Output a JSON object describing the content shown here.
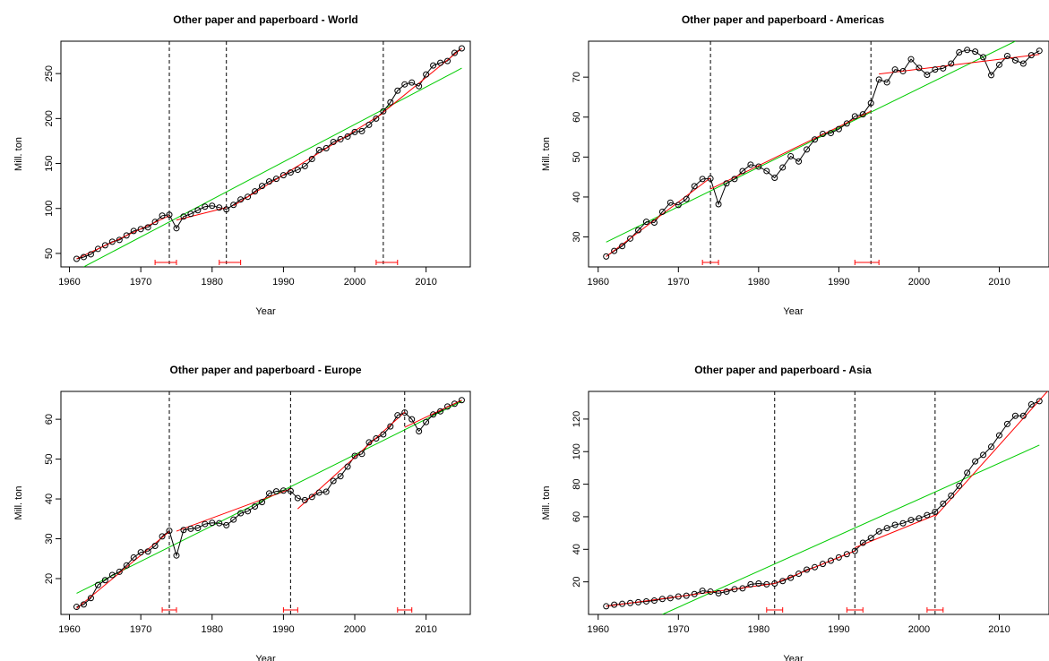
{
  "chart_data": [
    {
      "type": "line",
      "title": "Other paper and paperboard - World",
      "xlabel": "Year",
      "ylabel": "Mill. ton",
      "xlim": [
        1958.8,
        2016.2
      ],
      "ylim": [
        35,
        286
      ],
      "xticks": [
        1960,
        1970,
        1980,
        1990,
        2000,
        2010
      ],
      "yticks": [
        50,
        100,
        150,
        200,
        250
      ],
      "x": [
        1961,
        1962,
        1963,
        1964,
        1965,
        1966,
        1967,
        1968,
        1969,
        1970,
        1971,
        1972,
        1973,
        1974,
        1975,
        1976,
        1977,
        1978,
        1979,
        1980,
        1981,
        1982,
        1983,
        1984,
        1985,
        1986,
        1987,
        1988,
        1989,
        1990,
        1991,
        1992,
        1993,
        1994,
        1995,
        1996,
        1997,
        1998,
        1999,
        2000,
        2001,
        2002,
        2003,
        2004,
        2005,
        2006,
        2007,
        2008,
        2009,
        2010,
        2011,
        2012,
        2013,
        2014,
        2015
      ],
      "values": [
        44,
        46,
        49,
        55,
        59,
        63,
        65,
        70,
        75,
        77,
        79,
        85,
        92,
        93,
        78,
        91,
        94,
        98,
        102,
        103,
        101,
        99,
        104,
        110,
        113,
        119,
        125,
        130,
        133,
        137,
        140,
        143,
        147,
        155,
        165,
        167,
        174,
        177,
        180,
        185,
        186,
        193,
        200,
        208,
        218,
        231,
        238,
        240,
        236,
        249,
        259,
        262,
        264,
        273,
        278
      ],
      "trend": {
        "x": [
          1962,
          2015
        ],
        "y": [
          35,
          256
        ]
      },
      "segments": [
        {
          "x": [
            1961,
            1974
          ],
          "y": [
            44,
            92
          ]
        },
        {
          "x": [
            1975,
            1982
          ],
          "y": [
            87,
            101
          ]
        },
        {
          "x": [
            1983,
            2004
          ],
          "y": [
            103,
            206
          ]
        },
        {
          "x": [
            2004,
            2015
          ],
          "y": [
            207,
            278
          ]
        }
      ],
      "breakpoints": [
        1974,
        1982,
        2004
      ],
      "confidence_intervals": [
        [
          1972,
          1975
        ],
        [
          1981,
          1984
        ],
        [
          2003,
          2006
        ]
      ]
    },
    {
      "type": "line",
      "title": "Other paper and paperboard - Americas",
      "xlabel": "Year",
      "ylabel": "Mill. ton",
      "xlim": [
        1958.8,
        2016.2
      ],
      "ylim": [
        22.5,
        79
      ],
      "xticks": [
        1960,
        1970,
        1980,
        1990,
        2000,
        2010
      ],
      "yticks": [
        30,
        40,
        50,
        60,
        70
      ],
      "x": [
        1961,
        1962,
        1963,
        1964,
        1965,
        1966,
        1967,
        1968,
        1969,
        1970,
        1971,
        1972,
        1973,
        1974,
        1975,
        1976,
        1977,
        1978,
        1979,
        1980,
        1981,
        1982,
        1983,
        1984,
        1985,
        1986,
        1987,
        1988,
        1989,
        1990,
        1991,
        1992,
        1993,
        1994,
        1995,
        1996,
        1997,
        1998,
        1999,
        2000,
        2001,
        2002,
        2003,
        2004,
        2005,
        2006,
        2007,
        2008,
        2009,
        2010,
        2011,
        2012,
        2013,
        2014,
        2015
      ],
      "values": [
        25.1,
        26.5,
        27.7,
        29.6,
        31.7,
        33.8,
        33.6,
        36.3,
        38.6,
        38.0,
        39.5,
        42.7,
        44.5,
        44.6,
        38.2,
        43.4,
        44.5,
        46.5,
        48.1,
        47.6,
        46.5,
        44.8,
        47.4,
        50.2,
        48.9,
        51.9,
        54.4,
        55.8,
        56.0,
        57.0,
        58.4,
        60.2,
        60.7,
        63.5,
        69.4,
        68.7,
        71.9,
        71.5,
        74.5,
        72.3,
        70.6,
        71.9,
        72.2,
        73.4,
        76.2,
        76.8,
        76.4,
        75.0,
        70.5,
        73.1,
        75.3,
        74.2,
        73.4,
        75.5,
        76.6
      ],
      "trend": {
        "x": [
          1961,
          2012
        ],
        "y": [
          28.7,
          79
        ]
      },
      "segments": [
        {
          "x": [
            1961,
            1974
          ],
          "y": [
            25.1,
            44.8
          ]
        },
        {
          "x": [
            1974,
            1994
          ],
          "y": [
            42,
            61.5
          ]
        },
        {
          "x": [
            1995,
            2015
          ],
          "y": [
            70.8,
            75.7
          ]
        }
      ],
      "breakpoints": [
        1974,
        1994
      ],
      "confidence_intervals": [
        [
          1973,
          1975
        ],
        [
          1992,
          1995
        ]
      ]
    },
    {
      "type": "line",
      "title": "Other paper and paperboard - Europe",
      "xlabel": "Year",
      "ylabel": "Mill. ton",
      "xlim": [
        1958.8,
        2016.2
      ],
      "ylim": [
        11,
        67
      ],
      "xticks": [
        1960,
        1970,
        1980,
        1990,
        2000,
        2010
      ],
      "yticks": [
        20,
        30,
        40,
        50,
        60
      ],
      "x": [
        1961,
        1962,
        1963,
        1964,
        1965,
        1966,
        1967,
        1968,
        1969,
        1970,
        1971,
        1972,
        1973,
        1974,
        1975,
        1976,
        1977,
        1978,
        1979,
        1980,
        1981,
        1982,
        1983,
        1984,
        1985,
        1986,
        1987,
        1988,
        1989,
        1990,
        1991,
        1992,
        1993,
        1994,
        1995,
        1996,
        1997,
        1998,
        1999,
        2000,
        2001,
        2002,
        2003,
        2004,
        2005,
        2006,
        2007,
        2008,
        2009,
        2010,
        2011,
        2012,
        2013,
        2014,
        2015
      ],
      "values": [
        12.9,
        13.5,
        15.1,
        18.4,
        19.6,
        20.9,
        21.7,
        23.3,
        25.3,
        26.6,
        26.8,
        28.2,
        30.6,
        32.0,
        25.8,
        32.2,
        32.5,
        32.7,
        33.7,
        34.0,
        33.9,
        33.4,
        34.8,
        36.4,
        36.9,
        38.1,
        39.2,
        41.4,
        41.9,
        42.1,
        42.0,
        40.2,
        39.7,
        40.5,
        41.6,
        41.8,
        44.5,
        45.7,
        48.1,
        50.8,
        51.3,
        54.2,
        55.2,
        56.2,
        58.2,
        61.0,
        61.7,
        60.0,
        57.0,
        59.3,
        61.2,
        62.0,
        63.2,
        63.9,
        64.8
      ],
      "trend": {
        "x": [
          1961,
          2015
        ],
        "y": [
          16.3,
          64.5
        ]
      },
      "segments": [
        {
          "x": [
            1961,
            1974
          ],
          "y": [
            12.5,
            31.8
          ]
        },
        {
          "x": [
            1975,
            1991
          ],
          "y": [
            31.9,
            42.5
          ]
        },
        {
          "x": [
            1992,
            2007
          ],
          "y": [
            37.5,
            61.8
          ]
        },
        {
          "x": [
            2007,
            2015
          ],
          "y": [
            58,
            64.8
          ]
        }
      ],
      "breakpoints": [
        1974,
        1991,
        2007
      ],
      "confidence_intervals": [
        [
          1973,
          1975
        ],
        [
          1990,
          1992
        ],
        [
          2006,
          2008
        ]
      ]
    },
    {
      "type": "line",
      "title": "Other paper and paperboard - Asia",
      "xlabel": "Year",
      "ylabel": "Mill. ton",
      "xlim": [
        1958.8,
        2016.2
      ],
      "ylim": [
        0,
        137
      ],
      "xticks": [
        1960,
        1970,
        1980,
        1990,
        2000,
        2010
      ],
      "yticks": [
        20,
        40,
        60,
        80,
        100,
        120
      ],
      "x": [
        1961,
        1962,
        1963,
        1964,
        1965,
        1966,
        1967,
        1968,
        1969,
        1970,
        1971,
        1972,
        1973,
        1974,
        1975,
        1976,
        1977,
        1978,
        1979,
        1980,
        1981,
        1982,
        1983,
        1984,
        1985,
        1986,
        1987,
        1988,
        1989,
        1990,
        1991,
        1992,
        1993,
        1994,
        1995,
        1996,
        1997,
        1998,
        1999,
        2000,
        2001,
        2002,
        2003,
        2004,
        2005,
        2006,
        2007,
        2008,
        2009,
        2010,
        2011,
        2012,
        2013,
        2014,
        2015
      ],
      "values": [
        5,
        6,
        6.5,
        7,
        7.5,
        8,
        8.5,
        9.5,
        10,
        11,
        11.5,
        12.5,
        14.5,
        14,
        13,
        14,
        15.5,
        16,
        18.5,
        19,
        18.5,
        19,
        20.5,
        22.5,
        25,
        27.5,
        29,
        31,
        33,
        35,
        37,
        39,
        44,
        47,
        51,
        53,
        55,
        56,
        58,
        59,
        61,
        63,
        68,
        73,
        79,
        87,
        94,
        98,
        103,
        110,
        117,
        122,
        122,
        129,
        131
      ],
      "trend": {
        "x": [
          1968,
          2015
        ],
        "y": [
          0,
          104
        ]
      },
      "segments": [
        {
          "x": [
            1961,
            1982
          ],
          "y": [
            5,
            19
          ]
        },
        {
          "x": [
            1982,
            1992
          ],
          "y": [
            19,
            39
          ]
        },
        {
          "x": [
            1992,
            2002
          ],
          "y": [
            41,
            61
          ]
        },
        {
          "x": [
            2002,
            2016
          ],
          "y": [
            60,
            137
          ]
        }
      ],
      "breakpoints": [
        1982,
        1992,
        2002
      ],
      "confidence_intervals": [
        [
          1981,
          1983
        ],
        [
          1991,
          1993
        ],
        [
          2001,
          2003
        ]
      ]
    }
  ],
  "colors": {
    "observed": "#000000",
    "segment": "#ff0000",
    "trend": "#00cc00",
    "interval": "#ff0000",
    "breakpoint": "#000000"
  }
}
